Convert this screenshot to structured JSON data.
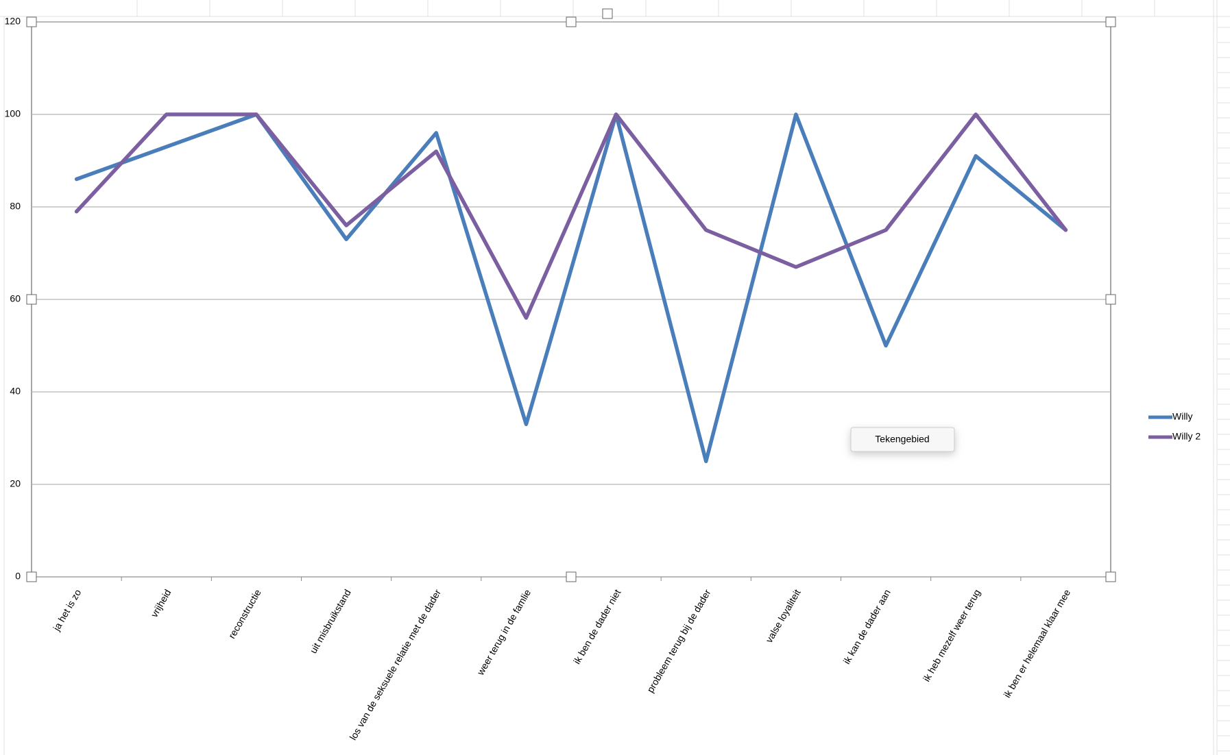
{
  "chart_data": {
    "type": "line",
    "categories": [
      "ja het is zo",
      "vrijheid",
      "reconstructie",
      "uit misbruikstand",
      "los van de seksuele relatie met de dader",
      "weer terug in de famlie",
      "ik ben de dader niet",
      "probleem terug bij de dader",
      "valse loyaliteit",
      "ik kan de dader aan",
      "ik heb mezelf weer terug",
      "ik ben er helemaal klaar mee"
    ],
    "series": [
      {
        "name": "Willy",
        "color": "#4a7ebb",
        "values": [
          86,
          93,
          100,
          73,
          96,
          33,
          100,
          25,
          100,
          50,
          91,
          75
        ]
      },
      {
        "name": "Willy 2",
        "color": "#7b5fa0",
        "values": [
          79,
          100,
          100,
          76,
          92,
          56,
          100,
          75,
          67,
          75,
          100,
          75
        ]
      }
    ],
    "ylim": [
      0,
      120
    ],
    "yticks": [
      0,
      20,
      40,
      60,
      80,
      100,
      120
    ],
    "grid": true,
    "legend": "right",
    "tooltip": "Tekengebied"
  }
}
